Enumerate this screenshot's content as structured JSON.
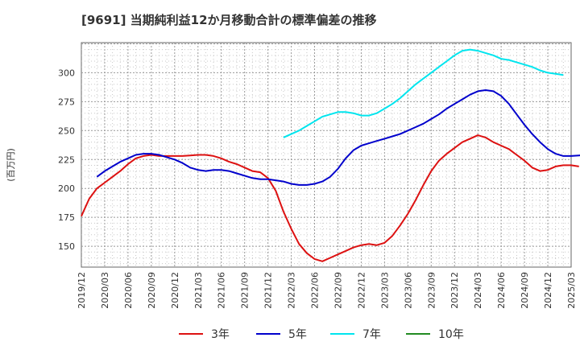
{
  "chart_data": {
    "type": "line",
    "title": "[9691]  当期純利益12か月移動合計の標準偏差の推移",
    "ylabel": "(百万円)",
    "xlabel": "",
    "ylim": [
      132,
      326
    ],
    "yticks": [
      150,
      175,
      200,
      225,
      250,
      275,
      300
    ],
    "xticks": [
      "2019/12",
      "2020/03",
      "2020/06",
      "2020/09",
      "2020/12",
      "2021/03",
      "2021/06",
      "2021/09",
      "2021/12",
      "2022/03",
      "2022/06",
      "2022/09",
      "2022/12",
      "2023/03",
      "2023/06",
      "2023/09",
      "2023/12",
      "2024/03",
      "2024/06",
      "2024/09",
      "2024/12",
      "2025/03"
    ],
    "x_start": "2019/12",
    "grid": true,
    "legend_position": "bottom",
    "series": [
      {
        "name": "3年",
        "color": "#dd1111",
        "start_month_index": 0,
        "values": [
          176,
          191,
          200,
          205,
          210,
          215,
          221,
          226,
          228,
          229,
          228,
          228,
          228,
          228,
          228.5,
          229,
          229,
          228,
          226,
          223,
          221,
          218,
          215,
          214,
          209,
          198,
          180,
          165,
          152,
          144,
          139,
          137,
          140,
          143,
          146,
          149,
          151,
          152,
          151,
          153,
          159,
          168,
          178,
          190,
          203,
          215,
          224,
          230,
          235,
          240,
          243,
          246,
          244,
          240,
          237,
          234,
          229,
          224,
          218,
          215,
          216,
          219,
          220,
          220,
          219
        ]
      },
      {
        "name": "5年",
        "color": "#0000cc",
        "start_month_index": 2,
        "values": [
          210,
          215,
          219,
          223,
          226,
          229,
          230,
          230,
          229,
          227,
          225,
          222,
          218,
          216,
          215,
          216,
          216,
          215,
          213,
          211,
          209,
          208,
          208,
          207,
          206,
          204,
          203,
          203,
          204,
          206,
          210,
          217,
          226,
          233,
          237,
          239,
          241,
          243,
          245,
          247,
          250,
          253,
          256,
          260,
          264,
          269,
          273,
          277,
          281,
          284,
          285,
          284,
          280,
          273,
          264,
          255,
          247,
          240,
          234,
          230,
          228,
          228,
          228.5,
          229,
          229
        ]
      },
      {
        "name": "7年",
        "color": "#00e5ee",
        "start_month_index": 26,
        "values": [
          244,
          247,
          250,
          254,
          258,
          262,
          264,
          266,
          266,
          265,
          263,
          263,
          265,
          269,
          273,
          278,
          284,
          290,
          295,
          300,
          305,
          310,
          315,
          319,
          320,
          319,
          317,
          315,
          312,
          311,
          309,
          307,
          305,
          302,
          300,
          299,
          298
        ]
      },
      {
        "name": "10年",
        "color": "#228b22",
        "start_month_index": 0,
        "values": []
      }
    ]
  }
}
